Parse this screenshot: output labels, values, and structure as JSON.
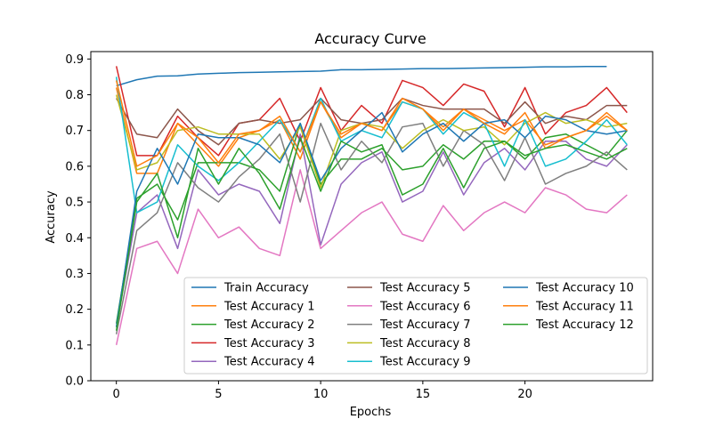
{
  "chart_data": {
    "type": "line",
    "title": "Accuracy Curve",
    "xlabel": "Epochs",
    "ylabel": "Accuracy",
    "xlim": [
      -1.25,
      26.25
    ],
    "ylim": [
      0.0,
      0.9
    ],
    "x_ticks": [
      0,
      5,
      10,
      15,
      20
    ],
    "y_ticks": [
      0.0,
      0.1,
      0.2,
      0.3,
      0.4,
      0.5,
      0.6,
      0.7,
      0.8,
      0.9
    ],
    "grid": false,
    "legend_position": "lower-right",
    "legend_columns": 3,
    "series": [
      {
        "name": "Train Accuracy",
        "color": "#1f77b4",
        "values": [
          0.825,
          0.842,
          0.852,
          0.853,
          0.858,
          0.86,
          0.862,
          0.863,
          0.864,
          0.865,
          0.866,
          0.87,
          0.87,
          0.871,
          0.872,
          0.873,
          0.873,
          0.874,
          0.875,
          0.876,
          0.877,
          0.878,
          0.878,
          0.879,
          0.879
        ]
      },
      {
        "name": "Test Accuracy 1",
        "color": "#ff7f0e",
        "values": [
          0.82,
          0.58,
          0.58,
          0.72,
          0.66,
          0.6,
          0.68,
          0.7,
          0.73,
          0.62,
          0.78,
          0.68,
          0.72,
          0.7,
          0.78,
          0.76,
          0.71,
          0.76,
          0.73,
          0.7,
          0.73,
          0.66,
          0.68,
          0.7,
          0.74,
          0.7
        ]
      },
      {
        "name": "Test Accuracy 2",
        "color": "#2ca02c",
        "values": [
          0.16,
          0.51,
          0.55,
          0.45,
          0.61,
          0.61,
          0.61,
          0.59,
          0.53,
          0.72,
          0.55,
          0.62,
          0.62,
          0.65,
          0.59,
          0.6,
          0.66,
          0.62,
          0.67,
          0.67,
          0.62,
          0.68,
          0.69,
          0.66,
          0.63,
          0.7
        ]
      },
      {
        "name": "Test Accuracy 3",
        "color": "#d62728",
        "values": [
          0.88,
          0.63,
          0.63,
          0.74,
          0.68,
          0.63,
          0.72,
          0.73,
          0.79,
          0.67,
          0.82,
          0.7,
          0.77,
          0.72,
          0.84,
          0.82,
          0.77,
          0.83,
          0.81,
          0.71,
          0.82,
          0.69,
          0.75,
          0.77,
          0.82,
          0.75
        ]
      },
      {
        "name": "Test Accuracy 4",
        "color": "#9467bd",
        "values": [
          0.15,
          0.47,
          0.52,
          0.37,
          0.59,
          0.52,
          0.55,
          0.53,
          0.44,
          0.69,
          0.38,
          0.55,
          0.61,
          0.64,
          0.5,
          0.53,
          0.64,
          0.52,
          0.61,
          0.65,
          0.59,
          0.67,
          0.67,
          0.62,
          0.6,
          0.66
        ]
      },
      {
        "name": "Test Accuracy 5",
        "color": "#8c564b",
        "values": [
          0.79,
          0.69,
          0.68,
          0.76,
          0.7,
          0.66,
          0.72,
          0.73,
          0.72,
          0.73,
          0.79,
          0.73,
          0.72,
          0.73,
          0.79,
          0.77,
          0.76,
          0.76,
          0.76,
          0.72,
          0.78,
          0.72,
          0.74,
          0.73,
          0.77,
          0.77
        ]
      },
      {
        "name": "Test Accuracy 6",
        "color": "#e377c2",
        "values": [
          0.1,
          0.37,
          0.39,
          0.3,
          0.48,
          0.4,
          0.43,
          0.37,
          0.35,
          0.59,
          0.37,
          0.42,
          0.47,
          0.5,
          0.41,
          0.39,
          0.49,
          0.42,
          0.47,
          0.5,
          0.47,
          0.54,
          0.52,
          0.48,
          0.47,
          0.52
        ]
      },
      {
        "name": "Test Accuracy 7",
        "color": "#7f7f7f",
        "values": [
          0.13,
          0.42,
          0.47,
          0.61,
          0.54,
          0.5,
          0.57,
          0.62,
          0.69,
          0.5,
          0.72,
          0.59,
          0.67,
          0.61,
          0.71,
          0.72,
          0.6,
          0.7,
          0.66,
          0.56,
          0.68,
          0.55,
          0.58,
          0.6,
          0.64,
          0.59
        ]
      },
      {
        "name": "Test Accuracy 8",
        "color": "#bcbd22",
        "values": [
          0.8,
          0.59,
          0.61,
          0.7,
          0.71,
          0.69,
          0.69,
          0.69,
          0.62,
          0.71,
          0.54,
          0.7,
          0.72,
          0.71,
          0.65,
          0.7,
          0.73,
          0.7,
          0.71,
          0.66,
          0.72,
          0.75,
          0.72,
          0.73,
          0.71,
          0.72
        ]
      },
      {
        "name": "Test Accuracy 9",
        "color": "#17becf",
        "values": [
          0.85,
          0.47,
          0.5,
          0.66,
          0.6,
          0.56,
          0.61,
          0.67,
          0.73,
          0.64,
          0.79,
          0.67,
          0.7,
          0.68,
          0.78,
          0.76,
          0.69,
          0.75,
          0.72,
          0.6,
          0.73,
          0.6,
          0.62,
          0.67,
          0.73,
          0.66
        ]
      },
      {
        "name": "Test Accuracy 10",
        "color": "#1f77b4",
        "values": [
          0.15,
          0.53,
          0.65,
          0.55,
          0.69,
          0.68,
          0.68,
          0.66,
          0.61,
          0.72,
          0.56,
          0.65,
          0.7,
          0.75,
          0.64,
          0.69,
          0.72,
          0.67,
          0.72,
          0.73,
          0.68,
          0.74,
          0.73,
          0.7,
          0.69,
          0.7
        ]
      },
      {
        "name": "Test Accuracy 11",
        "color": "#ff7f0e",
        "values": [
          0.84,
          0.6,
          0.63,
          0.72,
          0.68,
          0.61,
          0.69,
          0.7,
          0.74,
          0.64,
          0.78,
          0.69,
          0.72,
          0.7,
          0.79,
          0.76,
          0.7,
          0.76,
          0.72,
          0.69,
          0.75,
          0.65,
          0.68,
          0.7,
          0.75,
          0.7
        ]
      },
      {
        "name": "Test Accuracy 12",
        "color": "#2ca02c",
        "values": [
          0.14,
          0.5,
          0.58,
          0.4,
          0.65,
          0.55,
          0.65,
          0.58,
          0.48,
          0.68,
          0.53,
          0.67,
          0.64,
          0.66,
          0.52,
          0.55,
          0.65,
          0.54,
          0.65,
          0.67,
          0.63,
          0.65,
          0.66,
          0.64,
          0.62,
          0.65
        ]
      }
    ]
  }
}
